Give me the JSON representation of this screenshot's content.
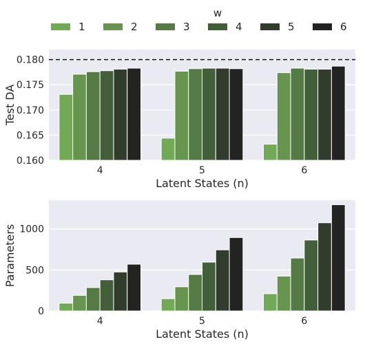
{
  "legend": {
    "title": "w",
    "entries": [
      "1",
      "2",
      "3",
      "4",
      "5",
      "6"
    ]
  },
  "colors": [
    "#72a957",
    "#679550",
    "#557a45",
    "#435f39",
    "#313c2d",
    "#232323"
  ],
  "chart_data": [
    {
      "type": "bar",
      "title": "",
      "xlabel": "Latent States (n)",
      "ylabel": "Test DA",
      "categories": [
        "4",
        "5",
        "6"
      ],
      "ylim": [
        0.16,
        0.182
      ],
      "yticks": [
        "0.160",
        "0.165",
        "0.170",
        "0.175",
        "0.180"
      ],
      "reference_line": {
        "y": 0.18,
        "style": "dashed"
      },
      "grid": true,
      "series": [
        {
          "name": "1",
          "values": [
            0.1731,
            0.1644,
            0.1632
          ]
        },
        {
          "name": "2",
          "values": [
            0.1771,
            0.1777,
            0.1774
          ]
        },
        {
          "name": "3",
          "values": [
            0.1776,
            0.1782,
            0.1783
          ]
        },
        {
          "name": "4",
          "values": [
            0.1778,
            0.1783,
            0.1781
          ]
        },
        {
          "name": "5",
          "values": [
            0.1781,
            0.1783,
            0.1781
          ]
        },
        {
          "name": "6",
          "values": [
            0.1783,
            0.1782,
            0.1787
          ]
        }
      ]
    },
    {
      "type": "bar",
      "title": "",
      "xlabel": "Latent States (n)",
      "ylabel": "Parameters",
      "categories": [
        "4",
        "5",
        "6"
      ],
      "ylim": [
        0,
        1350
      ],
      "yticks": [
        "0",
        "500",
        "1000"
      ],
      "grid": true,
      "series": [
        {
          "name": "1",
          "values": [
            95,
            150,
            210
          ]
        },
        {
          "name": "2",
          "values": [
            190,
            295,
            425
          ]
        },
        {
          "name": "3",
          "values": [
            285,
            445,
            645
          ]
        },
        {
          "name": "4",
          "values": [
            380,
            595,
            865
          ]
        },
        {
          "name": "5",
          "values": [
            475,
            745,
            1075
          ]
        },
        {
          "name": "6",
          "values": [
            570,
            895,
            1295
          ]
        }
      ]
    }
  ]
}
